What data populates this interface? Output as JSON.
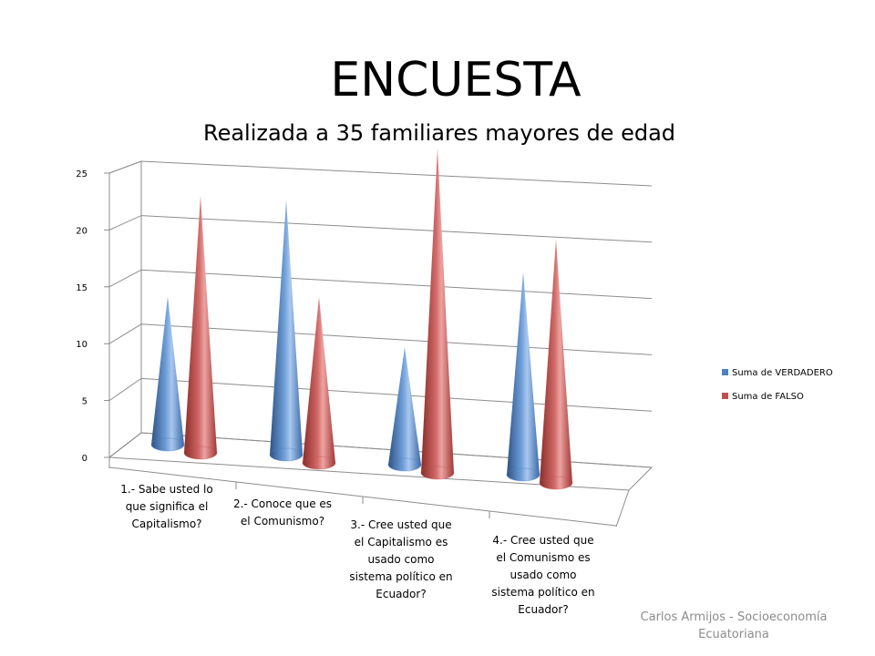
{
  "slide": {
    "title": "ENCUESTA",
    "subtitle": "Realizada a 35 familiares mayores de edad",
    "footer_lines": [
      "Carlos Armijos - Socioeconomía",
      "Ecuatoriana"
    ]
  },
  "chart_data": {
    "type": "bar",
    "style": "3d-cone",
    "categories": [
      [
        "1.- Sabe usted lo",
        "que significa el",
        "Capitalismo?"
      ],
      [
        "2.- Conoce que es",
        "el Comunismo?"
      ],
      [
        "3.- Cree usted que",
        "el Capitalismo es",
        "usado como",
        "sistema político en",
        "Ecuador?"
      ],
      [
        "4.- Cree usted que",
        "el Comunismo es",
        "usado como",
        "sistema político en",
        "Ecuador?"
      ]
    ],
    "series": [
      {
        "name": "Suma de VERDADERO",
        "color": "#4f81bd",
        "values": [
          13,
          22,
          10,
          17
        ]
      },
      {
        "name": "Suma de FALSO",
        "color": "#c0504d",
        "values": [
          22,
          14,
          27,
          20
        ]
      }
    ],
    "ylim": [
      0,
      25
    ],
    "yticks": [
      "0",
      "5",
      "10",
      "15",
      "20",
      "25"
    ],
    "grid": true,
    "legend_position": "right"
  }
}
